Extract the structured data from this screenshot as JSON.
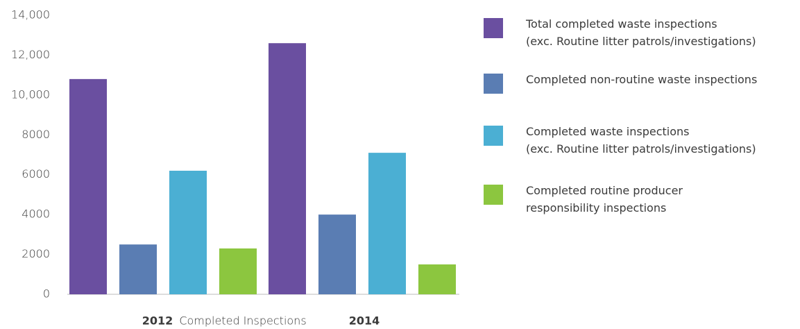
{
  "chart_data": {
    "type": "bar",
    "categories": [
      "2012",
      "2014"
    ],
    "xlabel": "Completed Inspections",
    "series": [
      {
        "name": "Total completed waste inspections\n(exc. Routine litter patrols/investigations)",
        "color": "#6a4fa0",
        "values": [
          10800,
          12600
        ]
      },
      {
        "name": "Completed non-routine waste inspections",
        "color": "#5a7db3",
        "values": [
          2500,
          4000
        ]
      },
      {
        "name": "Completed waste inspections\n(exc. Routine litter patrols/investigations)",
        "color": "#4bafd3",
        "values": [
          6200,
          7100
        ]
      },
      {
        "name": "Completed routine producer\nresponsibility inspections",
        "color": "#8cc63f",
        "values": [
          2300,
          1500
        ]
      }
    ],
    "ylim": [
      0,
      14000
    ],
    "yticks": [
      0,
      2000,
      4000,
      6000,
      8000,
      {
        "value": 10000,
        "label": "10,000"
      },
      {
        "value": 12000,
        "label": "12,000"
      },
      {
        "value": 14000,
        "label": "14,000"
      }
    ],
    "grid": false
  }
}
